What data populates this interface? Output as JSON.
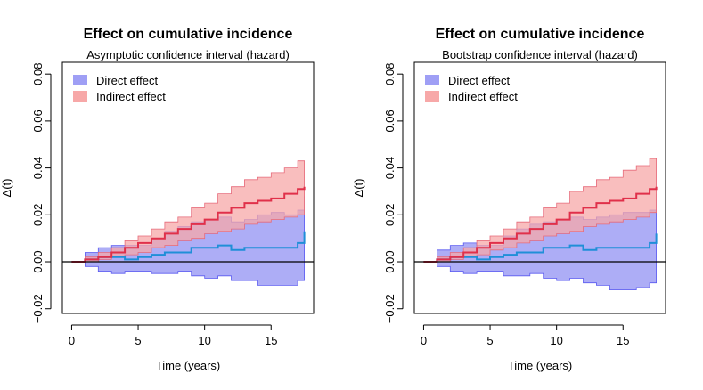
{
  "chart_data": [
    {
      "type": "area",
      "title": "Effect on cumulative incidence",
      "subtitle": "Asymptotic confidence interval (hazard)",
      "xlabel": "Time (years)",
      "ylabel": "Δ(t)",
      "xlim": [
        -0.7,
        18.2
      ],
      "ylim": [
        -0.022,
        0.085
      ],
      "xticks": [
        0,
        5,
        10,
        15
      ],
      "xtick_labels": [
        "0",
        "5",
        "10",
        "15"
      ],
      "yticks": [
        -0.02,
        0.0,
        0.02,
        0.04,
        0.06,
        0.08
      ],
      "ytick_labels": [
        "−0.02",
        "0.00",
        "0.02",
        "0.04",
        "0.06",
        "0.08"
      ],
      "reference_line_y": 0,
      "legend_position": "top-left",
      "series": [
        {
          "name": "Direct effect",
          "fill_color": "#9f9ff5",
          "line_color": "#1f8fd8",
          "x": [
            0,
            1,
            2,
            3,
            4,
            5,
            6,
            7,
            8,
            9,
            10,
            11,
            12,
            13,
            14,
            15,
            16,
            17,
            17.5
          ],
          "lower": [
            0,
            -0.002,
            -0.004,
            -0.005,
            -0.004,
            -0.004,
            -0.005,
            -0.005,
            -0.004,
            -0.006,
            -0.007,
            -0.006,
            -0.008,
            -0.008,
            -0.01,
            -0.01,
            -0.01,
            -0.008,
            -0.006
          ],
          "upper": [
            0,
            0.004,
            0.006,
            0.007,
            0.007,
            0.007,
            0.01,
            0.013,
            0.015,
            0.017,
            0.018,
            0.019,
            0.017,
            0.018,
            0.02,
            0.021,
            0.02,
            0.022,
            0.028
          ],
          "estimate": [
            0,
            0.001,
            0.002,
            0.002,
            0.001,
            0.002,
            0.003,
            0.004,
            0.004,
            0.006,
            0.006,
            0.007,
            0.005,
            0.006,
            0.006,
            0.006,
            0.006,
            0.008,
            0.013
          ]
        },
        {
          "name": "Indirect effect",
          "fill_color": "#f7a8a8",
          "line_color": "#e0304a",
          "x": [
            0,
            1,
            2,
            3,
            4,
            5,
            6,
            7,
            8,
            9,
            10,
            11,
            12,
            13,
            14,
            15,
            16,
            17,
            17.5
          ],
          "lower": [
            0,
            0.0,
            0.001,
            0.002,
            0.003,
            0.004,
            0.006,
            0.007,
            0.009,
            0.01,
            0.012,
            0.013,
            0.014,
            0.016,
            0.017,
            0.018,
            0.019,
            0.02,
            0.021
          ],
          "upper": [
            0,
            0.002,
            0.004,
            0.006,
            0.009,
            0.011,
            0.014,
            0.017,
            0.019,
            0.023,
            0.025,
            0.029,
            0.032,
            0.035,
            0.036,
            0.038,
            0.04,
            0.043,
            0.043
          ],
          "estimate": [
            0,
            0.001,
            0.002,
            0.004,
            0.006,
            0.008,
            0.01,
            0.012,
            0.014,
            0.016,
            0.018,
            0.021,
            0.023,
            0.025,
            0.026,
            0.027,
            0.029,
            0.031,
            0.032
          ]
        }
      ]
    },
    {
      "type": "area",
      "title": "Effect on cumulative incidence",
      "subtitle": "Bootstrap confidence interval (hazard)",
      "xlabel": "Time (years)",
      "ylabel": "Δ(t)",
      "xlim": [
        -0.7,
        18.2
      ],
      "ylim": [
        -0.022,
        0.085
      ],
      "xticks": [
        0,
        5,
        10,
        15
      ],
      "xtick_labels": [
        "0",
        "5",
        "10",
        "15"
      ],
      "yticks": [
        -0.02,
        0.0,
        0.02,
        0.04,
        0.06,
        0.08
      ],
      "ytick_labels": [
        "−0.02",
        "0.00",
        "0.02",
        "0.04",
        "0.06",
        "0.08"
      ],
      "reference_line_y": 0,
      "legend_position": "top-left",
      "series": [
        {
          "name": "Direct effect",
          "fill_color": "#9f9ff5",
          "line_color": "#1f8fd8",
          "x": [
            0,
            1,
            2,
            3,
            4,
            5,
            6,
            7,
            8,
            9,
            10,
            11,
            12,
            13,
            14,
            15,
            16,
            17,
            17.5
          ],
          "lower": [
            0,
            -0.002,
            -0.004,
            -0.005,
            -0.004,
            -0.004,
            -0.006,
            -0.006,
            -0.005,
            -0.007,
            -0.008,
            -0.007,
            -0.009,
            -0.01,
            -0.012,
            -0.012,
            -0.011,
            -0.009,
            -0.006
          ],
          "upper": [
            0,
            0.005,
            0.007,
            0.008,
            0.007,
            0.007,
            0.011,
            0.014,
            0.016,
            0.017,
            0.018,
            0.019,
            0.018,
            0.019,
            0.02,
            0.021,
            0.021,
            0.022,
            0.029
          ],
          "estimate": [
            0,
            0.001,
            0.002,
            0.002,
            0.001,
            0.002,
            0.003,
            0.004,
            0.004,
            0.006,
            0.006,
            0.007,
            0.005,
            0.006,
            0.006,
            0.006,
            0.006,
            0.008,
            0.012
          ]
        },
        {
          "name": "Indirect effect",
          "fill_color": "#f7a8a8",
          "line_color": "#e0304a",
          "x": [
            0,
            1,
            2,
            3,
            4,
            5,
            6,
            7,
            8,
            9,
            10,
            11,
            12,
            13,
            14,
            15,
            16,
            17,
            17.5
          ],
          "lower": [
            0,
            0.0,
            0.001,
            0.002,
            0.003,
            0.005,
            0.006,
            0.008,
            0.009,
            0.011,
            0.012,
            0.013,
            0.015,
            0.016,
            0.017,
            0.018,
            0.019,
            0.021,
            0.021
          ],
          "upper": [
            0,
            0.002,
            0.004,
            0.006,
            0.009,
            0.011,
            0.014,
            0.017,
            0.019,
            0.023,
            0.025,
            0.03,
            0.032,
            0.035,
            0.036,
            0.039,
            0.041,
            0.044,
            0.044
          ],
          "estimate": [
            0,
            0.001,
            0.002,
            0.004,
            0.006,
            0.008,
            0.01,
            0.012,
            0.014,
            0.016,
            0.018,
            0.021,
            0.023,
            0.025,
            0.026,
            0.027,
            0.029,
            0.031,
            0.032
          ]
        }
      ]
    }
  ]
}
